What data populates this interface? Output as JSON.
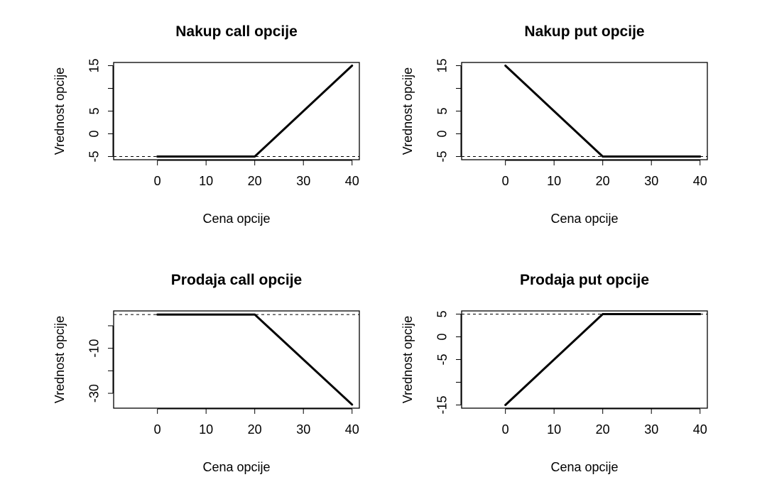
{
  "chart_data": [
    {
      "type": "line",
      "title": "Nakup call opcije",
      "xlabel": "Cena opcije",
      "ylabel": "Vrednost opcije",
      "x": [
        0,
        20,
        40
      ],
      "y": [
        -5,
        -5,
        15
      ],
      "xlim": [
        -9,
        41.5
      ],
      "ylim": [
        -5.7,
        15.7
      ],
      "xticks": [
        0,
        10,
        20,
        30,
        40
      ],
      "yticks": [
        -5,
        0,
        5,
        10,
        15
      ],
      "yticklabels": [
        "-5",
        "0",
        "5",
        "",
        "15"
      ],
      "hline": -5,
      "grid": false
    },
    {
      "type": "line",
      "title": "Nakup put opcije",
      "xlabel": "Cena opcije",
      "ylabel": "Vrednost opcije",
      "x": [
        0,
        20,
        40
      ],
      "y": [
        15,
        -5,
        -5
      ],
      "xlim": [
        -9,
        41.5
      ],
      "ylim": [
        -5.7,
        15.7
      ],
      "xticks": [
        0,
        10,
        20,
        30,
        40
      ],
      "yticks": [
        -5,
        0,
        5,
        10,
        15
      ],
      "yticklabels": [
        "-5",
        "0",
        "5",
        "",
        "15"
      ],
      "hline": -5,
      "grid": false
    },
    {
      "type": "line",
      "title": "Prodaja call opcije",
      "xlabel": "Cena opcije",
      "ylabel": "Vrednost opcije",
      "x": [
        0,
        20,
        40
      ],
      "y": [
        5,
        5,
        -35
      ],
      "xlim": [
        -9,
        41.5
      ],
      "ylim": [
        -36.6,
        6.6
      ],
      "xticks": [
        0,
        10,
        20,
        30,
        40
      ],
      "yticks": [
        -30,
        -20,
        -10,
        0
      ],
      "yticklabels": [
        "-30",
        "",
        "-10",
        ""
      ],
      "hline": 5,
      "grid": false
    },
    {
      "type": "line",
      "title": "Prodaja put opcije",
      "xlabel": "Cena opcije",
      "ylabel": "Vrednost opcije",
      "x": [
        0,
        20,
        40
      ],
      "y": [
        -15,
        5,
        5
      ],
      "xlim": [
        -9,
        41.5
      ],
      "ylim": [
        -15.7,
        5.7
      ],
      "xticks": [
        0,
        10,
        20,
        30,
        40
      ],
      "yticks": [
        -15,
        -10,
        -5,
        0,
        5
      ],
      "yticklabels": [
        "-15",
        "",
        "-5",
        "0",
        "5"
      ],
      "hline": 5,
      "grid": false
    }
  ]
}
